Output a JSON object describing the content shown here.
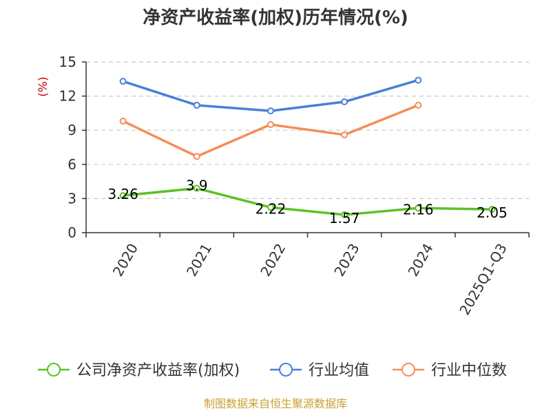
{
  "chart_data": {
    "type": "line",
    "title": "净资产收益率(加权)历年情况(%)",
    "ylabel": "(%)",
    "categories": [
      "2020",
      "2021",
      "2022",
      "2023",
      "2024",
      "2025Q1-Q3"
    ],
    "yticks": [
      "0",
      "3",
      "6",
      "9",
      "12",
      "15"
    ],
    "ylim": [
      0,
      15
    ],
    "grid": true,
    "legend_position": "bottom",
    "series": [
      {
        "name": "公司净资产收益率(加权)",
        "color": "#5bc225",
        "values": [
          3.26,
          3.9,
          2.22,
          1.57,
          2.16,
          2.05
        ],
        "labels": [
          "3.26",
          "3.9",
          "2.22",
          "1.57",
          "2.16",
          "2.05"
        ]
      },
      {
        "name": "行业均值",
        "color": "#4a7fd6",
        "values": [
          13.3,
          11.2,
          10.7,
          11.5,
          13.4,
          null
        ]
      },
      {
        "name": "行业中位数",
        "color": "#f58d56",
        "values": [
          9.8,
          6.7,
          9.5,
          8.6,
          11.2,
          null
        ]
      }
    ]
  },
  "source": "制图数据来自恒生聚源数据库"
}
